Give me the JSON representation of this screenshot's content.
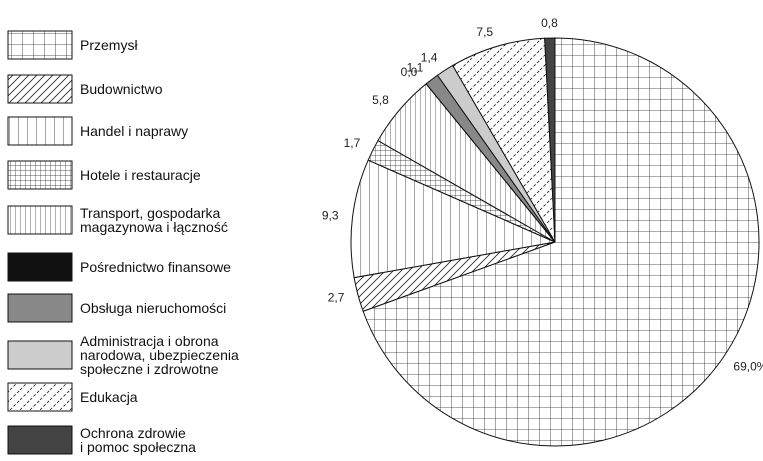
{
  "chart_data": {
    "type": "pie",
    "categories": [
      "Przemysł",
      "Budownictwo",
      "Handel i naprawy",
      "Hotele i restauracje",
      "Transport, gospodarka\nmagazynowa i łączność",
      "Pośrednictwo finansowe",
      "Obsługa nieruchomości",
      "Administracja i obrona\nnarodowa, ubezpieczenia\nspołeczne i zdrowotne",
      "Edukacja",
      "Ochrona zdrowie\ni pomoc społeczna"
    ],
    "values": [
      69.0,
      2.7,
      9.3,
      1.7,
      5.8,
      0.0,
      1.1,
      1.4,
      7.5,
      0.8
    ],
    "value_labels": [
      "69,0%",
      "2,7",
      "9,3",
      "1,7",
      "5,8",
      "0,0",
      "1,1",
      "1,4",
      "7,5",
      "0,8"
    ],
    "fills": [
      "grid",
      "diagonal",
      "vertical",
      "dense-grid",
      "dense-vertical",
      "#111111",
      "#888888",
      "#cccccc",
      "dashed-diagonal",
      "#444444"
    ],
    "legend": "left"
  }
}
